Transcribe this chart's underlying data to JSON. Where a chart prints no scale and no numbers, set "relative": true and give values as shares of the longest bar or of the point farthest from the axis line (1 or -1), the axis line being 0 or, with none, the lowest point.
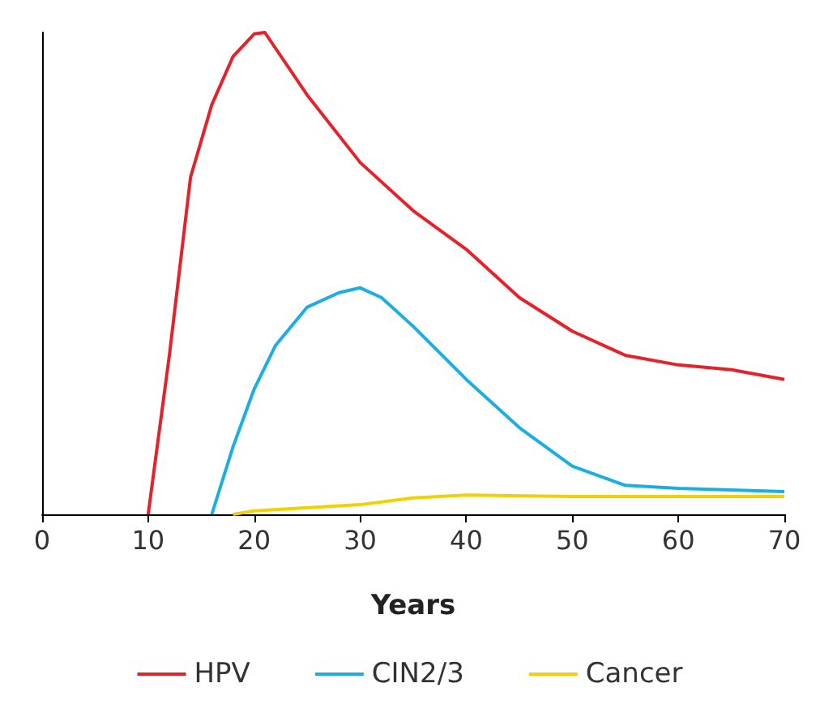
{
  "chart_data": {
    "type": "line",
    "xlabel": "Years",
    "relative": true,
    "xlim": [
      0,
      70
    ],
    "xticks": [
      0,
      10,
      20,
      30,
      40,
      50,
      60,
      70
    ],
    "grid": false,
    "legend": "bottom",
    "marker": "none",
    "line_style": "solid",
    "series": [
      {
        "name": "HPV",
        "color": "#e8202a",
        "x": [
          10,
          12,
          14,
          16,
          18,
          20,
          21,
          25,
          30,
          35,
          40,
          45,
          50,
          55,
          60,
          65,
          70
        ],
        "values": [
          0,
          0.33,
          0.7,
          0.85,
          0.95,
          0.997,
          1,
          0.87,
          0.73,
          0.63,
          0.55,
          0.45,
          0.38,
          0.33,
          0.31,
          0.3,
          0.28
        ]
      },
      {
        "name": "CIN2/3",
        "color": "#1aaee5",
        "x": [
          16,
          18,
          20,
          22,
          25,
          28,
          30,
          32,
          35,
          40,
          45,
          50,
          55,
          60,
          70
        ],
        "values": [
          0,
          0.14,
          0.26,
          0.35,
          0.43,
          0.46,
          0.47,
          0.45,
          0.39,
          0.28,
          0.18,
          0.1,
          0.06,
          0.054,
          0.047
        ]
      },
      {
        "name": "Cancer",
        "color": "#f5d000",
        "x": [
          18,
          20,
          30,
          35,
          40,
          50,
          60,
          70
        ],
        "values": [
          0,
          0.007,
          0.02,
          0.034,
          0.04,
          0.037,
          0.037,
          0.037
        ]
      }
    ]
  }
}
